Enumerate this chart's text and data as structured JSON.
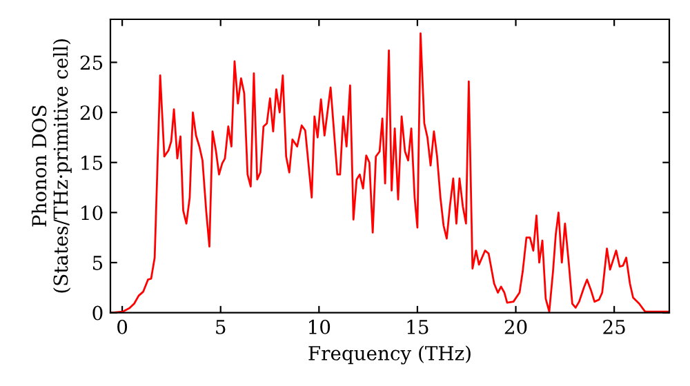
{
  "chart_data": {
    "type": "line",
    "xlabel": "Frequency (THz)",
    "ylabel": "Phonon DOS\n(States/THz·primitive cell)",
    "xlim": [
      -0.6,
      27.8
    ],
    "ylim": [
      0,
      29.3
    ],
    "xticks": [
      0,
      5,
      10,
      15,
      20,
      25
    ],
    "yticks": [
      0,
      5,
      10,
      15,
      20,
      25
    ],
    "grid": false,
    "legend": false,
    "series": [
      {
        "color": "#ff0000",
        "x": [
          -0.5,
          0.02,
          0.37,
          0.61,
          0.84,
          1.07,
          1.31,
          1.47,
          1.65,
          1.93,
          2.14,
          2.35,
          2.49,
          2.63,
          2.8,
          2.96,
          3.1,
          3.26,
          3.43,
          3.59,
          3.75,
          3.92,
          4.08,
          4.27,
          4.43,
          4.59,
          4.76,
          4.92,
          5.08,
          5.22,
          5.39,
          5.55,
          5.71,
          5.88,
          6.04,
          6.2,
          6.37,
          6.53,
          6.69,
          6.86,
          7.02,
          7.18,
          7.35,
          7.51,
          7.67,
          7.83,
          8.0,
          8.16,
          8.33,
          8.49,
          8.65,
          8.89,
          9.12,
          9.3,
          9.63,
          9.77,
          9.93,
          10.1,
          10.28,
          10.59,
          10.93,
          11.07,
          11.23,
          11.4,
          11.58,
          11.75,
          11.91,
          12.07,
          12.24,
          12.4,
          12.56,
          12.73,
          12.89,
          13.08,
          13.22,
          13.36,
          13.55,
          13.69,
          13.85,
          14.02,
          14.2,
          14.37,
          14.53,
          14.69,
          14.86,
          15.0,
          15.16,
          15.35,
          15.51,
          15.67,
          15.84,
          16.0,
          16.17,
          16.33,
          16.49,
          16.65,
          16.82,
          16.98,
          17.14,
          17.31,
          17.47,
          17.61,
          17.8,
          17.98,
          18.13,
          18.44,
          18.62,
          18.9,
          19.09,
          19.25,
          19.42,
          19.56,
          19.88,
          20.19,
          20.35,
          20.54,
          20.72,
          20.89,
          21.05,
          21.19,
          21.35,
          21.52,
          21.7,
          21.89,
          22.03,
          22.17,
          22.34,
          22.5,
          22.69,
          22.87,
          23.04,
          23.22,
          23.46,
          23.62,
          23.81,
          24.0,
          24.23,
          24.39,
          24.63,
          24.79,
          25.1,
          25.28,
          25.45,
          25.61,
          25.8,
          25.96,
          26.27,
          26.57,
          27.8
        ],
        "values": [
          0,
          0.1,
          0.45,
          0.9,
          1.7,
          2.1,
          3.3,
          3.4,
          5.5,
          23.7,
          15.6,
          16.2,
          17.1,
          20.3,
          15.4,
          17.6,
          10.2,
          8.9,
          11.5,
          20.0,
          17.7,
          16.6,
          15.2,
          10.1,
          6.6,
          18.1,
          16.2,
          13.8,
          14.9,
          15.4,
          18.6,
          16.6,
          25.1,
          20.9,
          23.4,
          21.9,
          13.8,
          12.6,
          23.9,
          13.3,
          14.0,
          18.6,
          18.9,
          21.4,
          18.1,
          22.3,
          20.0,
          23.7,
          15.6,
          14.0,
          17.3,
          16.6,
          18.7,
          18.2,
          11.5,
          19.6,
          17.5,
          21.3,
          17.7,
          22.5,
          13.8,
          13.8,
          19.6,
          16.6,
          22.7,
          9.3,
          13.3,
          13.8,
          12.4,
          15.7,
          15.0,
          8.0,
          15.6,
          16.1,
          19.4,
          12.9,
          26.2,
          12.2,
          18.4,
          11.3,
          19.6,
          16.1,
          15.2,
          18.4,
          11.5,
          8.5,
          27.9,
          18.9,
          17.5,
          14.7,
          18.1,
          15.6,
          11.5,
          8.7,
          7.4,
          10.6,
          13.4,
          8.9,
          13.4,
          10.6,
          8.9,
          23.1,
          4.4,
          6.2,
          4.8,
          6.2,
          5.9,
          2.9,
          2.0,
          2.6,
          2.0,
          1.0,
          1.1,
          2.0,
          4.1,
          7.5,
          7.5,
          6.2,
          9.7,
          5.0,
          7.2,
          1.4,
          0.1,
          4.1,
          7.8,
          10.0,
          5.0,
          8.9,
          5.0,
          0.9,
          0.5,
          1.1,
          2.5,
          3.3,
          2.3,
          1.1,
          1.3,
          2.0,
          6.4,
          4.3,
          6.2,
          4.6,
          4.7,
          5.5,
          2.9,
          1.5,
          0.9,
          0.1,
          0.1
        ]
      }
    ]
  }
}
